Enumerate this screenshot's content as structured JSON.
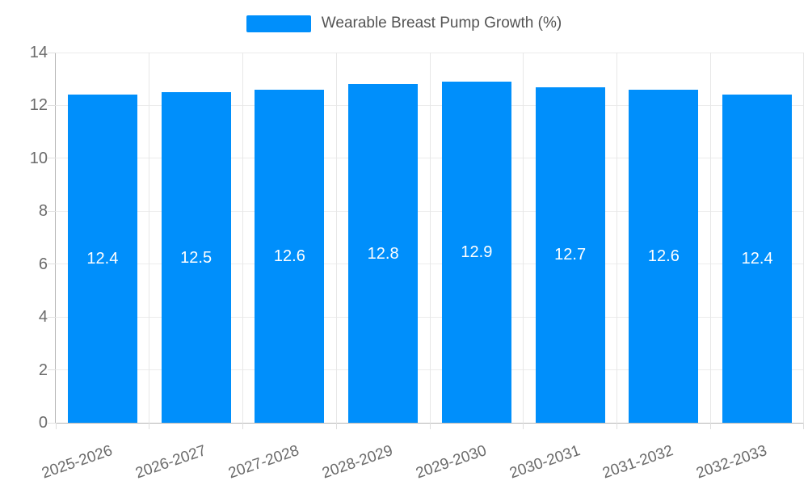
{
  "chart_data": {
    "type": "bar",
    "title": "Wearable Breast Pump Growth (%)",
    "categories": [
      "2025-2026",
      "2026-2027",
      "2027-2028",
      "2028-2029",
      "2029-2030",
      "2030-2031",
      "2031-2032",
      "2032-2033"
    ],
    "values": [
      12.4,
      12.5,
      12.6,
      12.8,
      12.9,
      12.7,
      12.6,
      12.4
    ],
    "data_labels": [
      "12.4",
      "12.5",
      "12.6",
      "12.8",
      "12.9",
      "12.7",
      "12.6",
      "12.4"
    ],
    "xlabel": "",
    "ylabel": "",
    "ylim": [
      0,
      14
    ],
    "yticks": [
      0,
      2,
      4,
      6,
      8,
      10,
      12,
      14
    ],
    "grid": true,
    "legend_position": "top",
    "bar_color": "#008FFB",
    "data_label_color": "#ffffff",
    "axis_text_color": "#6b6b6b",
    "legend_text_color": "#545454",
    "x_label_rotation_deg": -19
  }
}
